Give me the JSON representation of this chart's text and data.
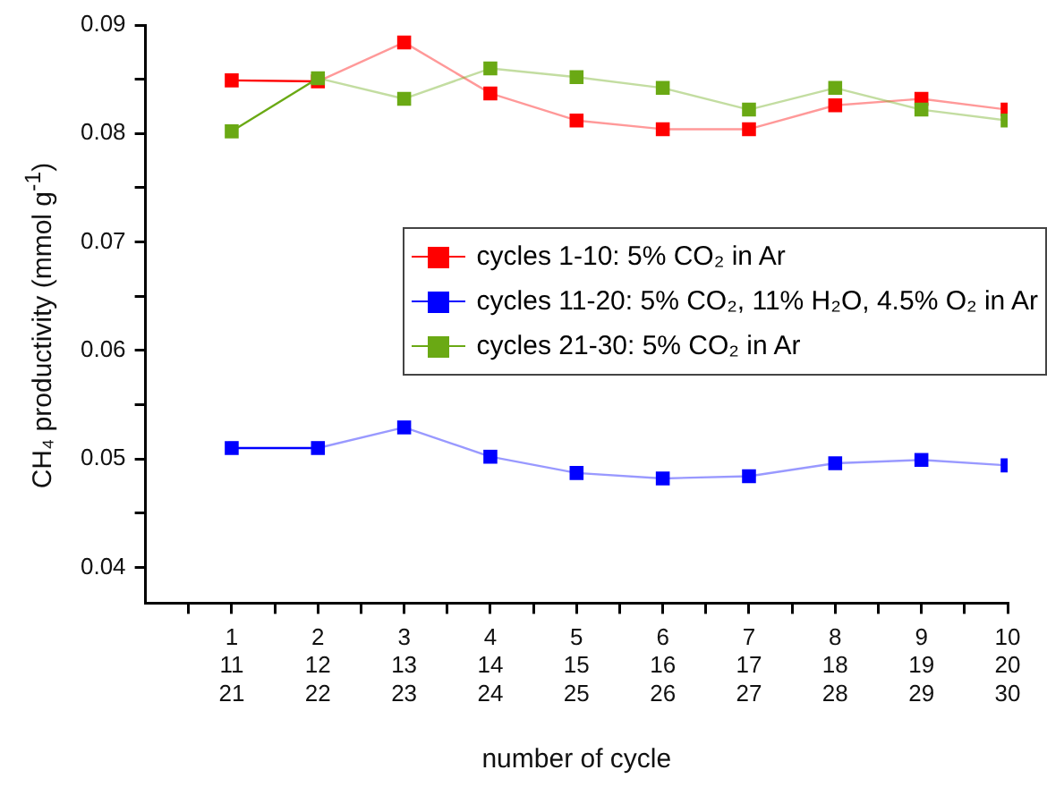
{
  "chart_data": {
    "type": "line",
    "xlabel": "number of cycle",
    "ylabel": "CH₄ productivity (mmol g$^{-1}$)",
    "categories": [
      "1\n11\n21",
      "2\n12\n22",
      "3\n13\n23",
      "4\n14\n24",
      "5\n15\n25",
      "6\n16\n26",
      "7\n17\n27",
      "8\n18\n28",
      "9\n19\n29",
      "10\n20\n30"
    ],
    "series": [
      {
        "name": "cycles 1-10: 5% CO₂ in Ar",
        "color": "#ff0000",
        "values": [
          0.0849,
          0.0848,
          0.0884,
          0.0837,
          0.0812,
          0.0804,
          0.0804,
          0.0826,
          0.0832,
          0.0822
        ]
      },
      {
        "name": "cycles 11-20: 5% CO₂, 11% H₂O, 4.5% O₂ in Ar",
        "color": "#0000ff",
        "values": [
          0.051,
          0.051,
          0.0529,
          0.0502,
          0.0487,
          0.0482,
          0.0484,
          0.0496,
          0.0499,
          0.0494
        ]
      },
      {
        "name": "cycles 21-30: 5% CO₂ in Ar",
        "color": "#6aa914",
        "values": [
          0.0802,
          0.0851,
          0.0832,
          0.086,
          0.0852,
          0.0842,
          0.0822,
          0.0842,
          0.0822,
          0.0812
        ]
      }
    ],
    "ylim": [
      0.0367,
      0.09
    ],
    "yticks": [
      {
        "value": 0.04,
        "label": "0.04"
      },
      {
        "value": 0.045,
        "label": null
      },
      {
        "value": 0.05,
        "label": "0.05"
      },
      {
        "value": 0.055,
        "label": null
      },
      {
        "value": 0.06,
        "label": "0.06"
      },
      {
        "value": 0.065,
        "label": null
      },
      {
        "value": 0.07,
        "label": "0.07"
      },
      {
        "value": 0.075,
        "label": null
      },
      {
        "value": 0.08,
        "label": "0.08"
      },
      {
        "value": 0.085,
        "label": null
      },
      {
        "value": 0.09,
        "label": "0.09"
      }
    ],
    "grid": false,
    "legend": "center right",
    "marker": "square",
    "line_style": "solid"
  }
}
